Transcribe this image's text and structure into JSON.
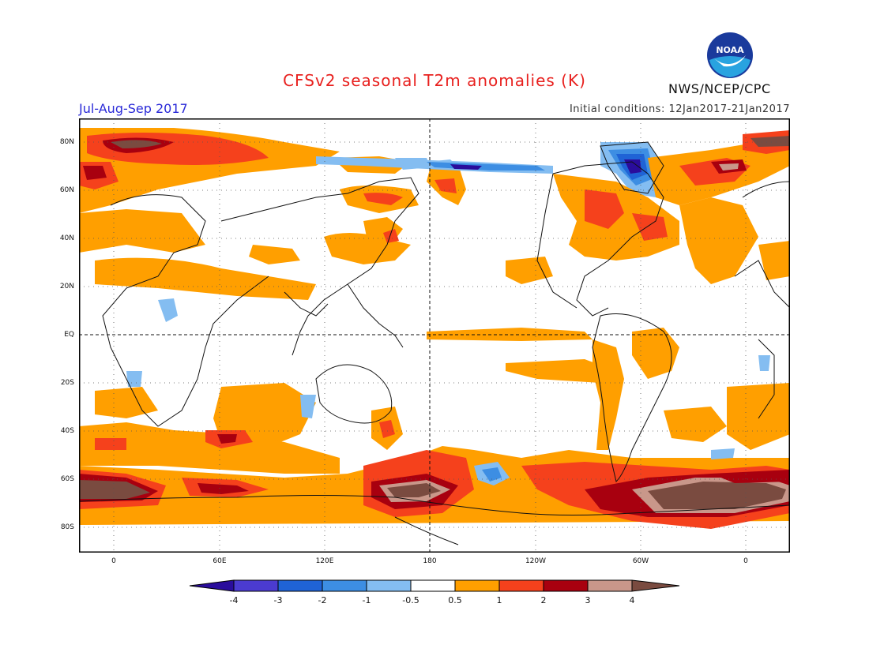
{
  "title": "CFSv2 seasonal T2m anomalies (K)",
  "period": "Jul-Aug-Sep 2017",
  "initial_conditions": "Initial conditions: 12Jan2017-21Jan2017",
  "agency": "NWS/NCEP/CPC",
  "logo_text": "NOAA",
  "lat_labels": [
    "80N",
    "60N",
    "40N",
    "20N",
    "EQ",
    "20S",
    "40S",
    "60S",
    "80S"
  ],
  "lon_labels": [
    "0",
    "60E",
    "120E",
    "180",
    "120W",
    "60W",
    "0"
  ],
  "colorbar": {
    "labels": [
      "-4",
      "-3",
      "-2",
      "-1",
      "-0.5",
      "0.5",
      "1",
      "2",
      "3",
      "4"
    ],
    "colors": [
      "#2a0d9c",
      "#4b3bd0",
      "#1f63d6",
      "#3d8ee3",
      "#84bdf1",
      "#ffffff",
      "#ff9f00",
      "#f5411c",
      "#a8000f",
      "#c9978a",
      "#7a4b40"
    ]
  },
  "anomaly_colors": {
    "cold1": "#84bdf1",
    "cold2": "#3d8ee3",
    "cold3": "#1f63d6",
    "cold4": "#2a0d9c",
    "warm1": "#ff9f00",
    "warm2": "#f5411c",
    "warm3": "#a8000f",
    "warm4": "#c9978a",
    "warm5": "#7a4b40"
  }
}
